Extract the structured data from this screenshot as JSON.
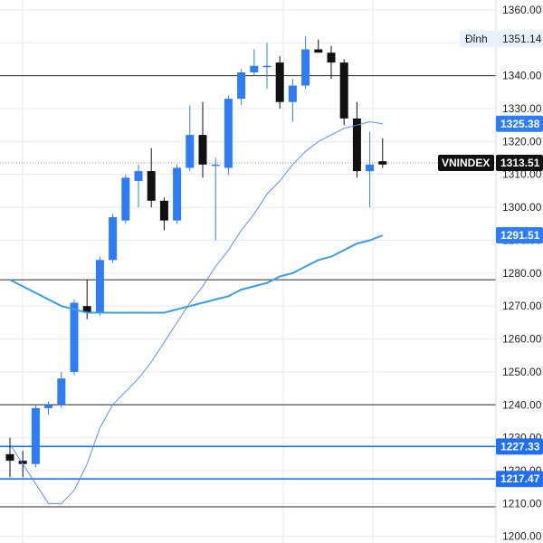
{
  "chart_data": {
    "type": "candlestick",
    "symbol": "VNINDEX",
    "ylim": [
      1198,
      1363
    ],
    "y_ticks": [
      "1360.00",
      "1350.00",
      "1340.00",
      "1330.00",
      "1320.00",
      "1310.00",
      "1300.00",
      "1290.00",
      "1280.00",
      "1270.00",
      "1260.00",
      "1250.00",
      "1240.00",
      "1230.00",
      "1220.00",
      "1210.00",
      "1200.00"
    ],
    "y_tick_values": [
      1360,
      1350,
      1340,
      1330,
      1320,
      1310,
      1300,
      1290,
      1280,
      1270,
      1260,
      1250,
      1240,
      1230,
      1220,
      1210,
      1200
    ],
    "colors": {
      "up": "#2e7cf6",
      "down": "#111111",
      "ma_fast": "#5b8ff0",
      "ma_slow": "#3a9ee6",
      "hline_black": "#2a2a2a",
      "hline_blue": "#1f6ff0",
      "grid": "#e6e9f0",
      "axis_bg": "#ffffff"
    },
    "candles": [
      {
        "o": 1225,
        "h": 1230,
        "l": 1218,
        "c": 1223
      },
      {
        "o": 1223,
        "h": 1226,
        "l": 1218,
        "c": 1222
      },
      {
        "o": 1222,
        "h": 1240,
        "l": 1221,
        "c": 1239
      },
      {
        "o": 1239,
        "h": 1241,
        "l": 1237,
        "c": 1240
      },
      {
        "o": 1240,
        "h": 1250,
        "l": 1239,
        "c": 1248
      },
      {
        "o": 1250,
        "h": 1272,
        "l": 1249,
        "c": 1271
      },
      {
        "o": 1270,
        "h": 1278,
        "l": 1266,
        "c": 1268
      },
      {
        "o": 1268,
        "h": 1285,
        "l": 1267,
        "c": 1284
      },
      {
        "o": 1284,
        "h": 1298,
        "l": 1283,
        "c": 1297
      },
      {
        "o": 1296,
        "h": 1310,
        "l": 1295,
        "c": 1309
      },
      {
        "o": 1308,
        "h": 1313,
        "l": 1300,
        "c": 1311
      },
      {
        "o": 1311,
        "h": 1318,
        "l": 1300,
        "c": 1302
      },
      {
        "o": 1302,
        "h": 1303,
        "l": 1293,
        "c": 1296
      },
      {
        "o": 1296,
        "h": 1313,
        "l": 1295,
        "c": 1312
      },
      {
        "o": 1312,
        "h": 1331,
        "l": 1311,
        "c": 1322
      },
      {
        "o": 1322,
        "h": 1332,
        "l": 1309,
        "c": 1313
      },
      {
        "o": 1313,
        "h": 1315,
        "l": 1290,
        "c": 1313
      },
      {
        "o": 1312,
        "h": 1334,
        "l": 1310,
        "c": 1333
      },
      {
        "o": 1333,
        "h": 1342,
        "l": 1331,
        "c": 1341
      },
      {
        "o": 1341,
        "h": 1348,
        "l": 1340,
        "c": 1343
      },
      {
        "o": 1343,
        "h": 1350,
        "l": 1336,
        "c": 1343
      },
      {
        "o": 1344,
        "h": 1346,
        "l": 1330,
        "c": 1332
      },
      {
        "o": 1332,
        "h": 1339,
        "l": 1326,
        "c": 1337
      },
      {
        "o": 1337,
        "h": 1352,
        "l": 1336,
        "c": 1348
      },
      {
        "o": 1348,
        "h": 1351,
        "l": 1347,
        "c": 1347
      },
      {
        "o": 1347,
        "h": 1349,
        "l": 1339,
        "c": 1344
      },
      {
        "o": 1344,
        "h": 1345,
        "l": 1325,
        "c": 1327
      },
      {
        "o": 1327,
        "h": 1332,
        "l": 1309,
        "c": 1311
      },
      {
        "o": 1311,
        "h": 1323,
        "l": 1300,
        "c": 1313
      },
      {
        "o": 1314,
        "h": 1321,
        "l": 1312,
        "c": 1313
      }
    ],
    "ma_fast": [
      [
        0,
        1228
      ],
      [
        1,
        1222
      ],
      [
        2,
        1216
      ],
      [
        3,
        1210
      ],
      [
        4,
        1210
      ],
      [
        5,
        1214
      ],
      [
        6,
        1222
      ],
      [
        7,
        1233
      ],
      [
        8,
        1240
      ],
      [
        9,
        1244
      ],
      [
        10,
        1248
      ],
      [
        11,
        1253
      ],
      [
        12,
        1259
      ],
      [
        13,
        1265
      ],
      [
        14,
        1271
      ],
      [
        15,
        1276
      ],
      [
        16,
        1282
      ],
      [
        17,
        1287
      ],
      [
        18,
        1293
      ],
      [
        19,
        1298
      ],
      [
        20,
        1304
      ],
      [
        21,
        1308
      ],
      [
        22,
        1313
      ],
      [
        23,
        1317
      ],
      [
        24,
        1320
      ],
      [
        25,
        1322
      ],
      [
        26,
        1324
      ],
      [
        27,
        1325
      ],
      [
        28,
        1326
      ],
      [
        29,
        1325.38
      ]
    ],
    "ma_slow": [
      [
        0,
        1278
      ],
      [
        1,
        1276
      ],
      [
        2,
        1274
      ],
      [
        3,
        1272
      ],
      [
        4,
        1270
      ],
      [
        5,
        1269
      ],
      [
        6,
        1268
      ],
      [
        7,
        1268
      ],
      [
        8,
        1268
      ],
      [
        9,
        1268
      ],
      [
        10,
        1268
      ],
      [
        11,
        1268
      ],
      [
        12,
        1268
      ],
      [
        13,
        1269
      ],
      [
        14,
        1270
      ],
      [
        15,
        1271
      ],
      [
        16,
        1272
      ],
      [
        17,
        1273
      ],
      [
        18,
        1275
      ],
      [
        19,
        1276
      ],
      [
        20,
        1277
      ],
      [
        21,
        1279
      ],
      [
        22,
        1280
      ],
      [
        23,
        1282
      ],
      [
        24,
        1284
      ],
      [
        25,
        1285
      ],
      [
        26,
        1287
      ],
      [
        27,
        1289
      ],
      [
        28,
        1290
      ],
      [
        29,
        1291.51
      ]
    ],
    "h_lines": [
      {
        "y": 1340,
        "color": "black"
      },
      {
        "y": 1278,
        "color": "black"
      },
      {
        "y": 1240,
        "color": "black"
      },
      {
        "y": 1209,
        "color": "black"
      },
      {
        "y": 1227.33,
        "color": "blue",
        "label": "1227.33"
      },
      {
        "y": 1217.47,
        "color": "blue",
        "label": "1217.47"
      }
    ],
    "last_price_line": 1313.51,
    "tags": {
      "peak": {
        "label": "Đỉnh",
        "value": "1351.14",
        "y": 1351.14
      },
      "ma_fast": {
        "value": "1325.38",
        "y": 1325.38
      },
      "last": {
        "symbol": "VNINDEX",
        "value": "1313.51",
        "y": 1313.51
      },
      "ma_slow": {
        "value": "1291.51",
        "y": 1291.51
      },
      "support1": {
        "value": "1227.33",
        "y": 1227.33
      },
      "support2": {
        "value": "1217.47",
        "y": 1217.47
      }
    }
  }
}
